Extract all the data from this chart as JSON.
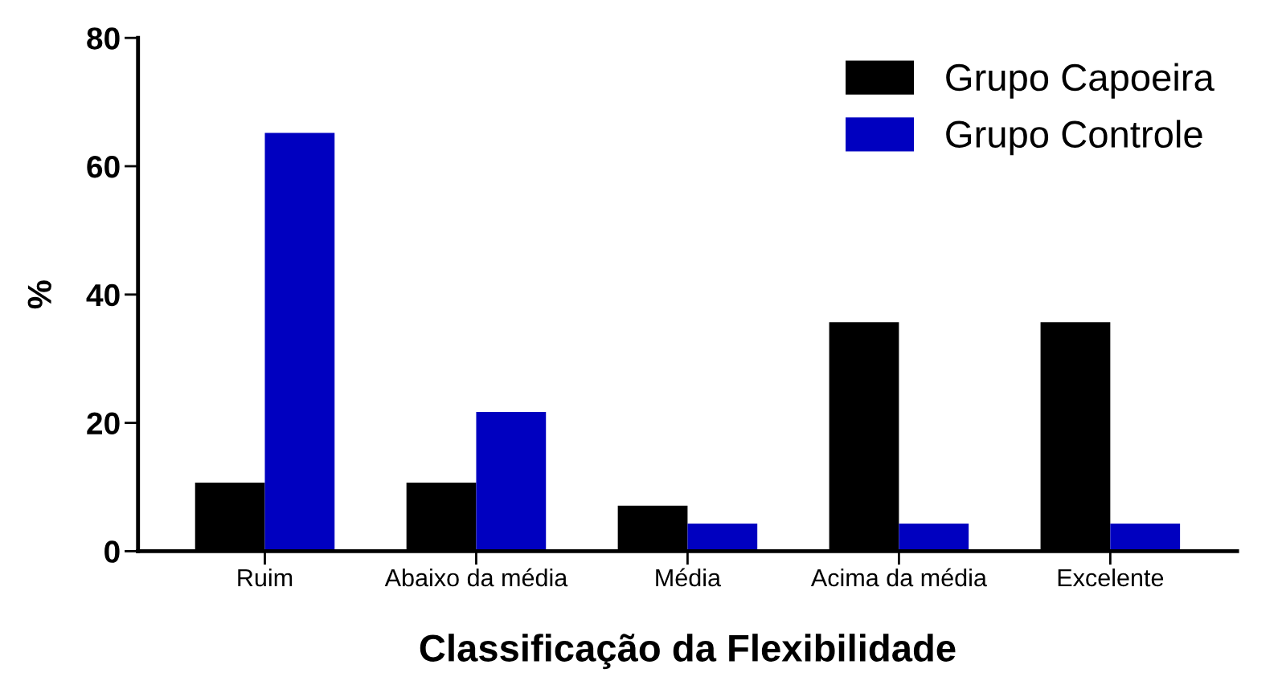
{
  "chart_data": {
    "type": "bar",
    "xlabel": "Classificação da Flexibilidade",
    "ylabel": "%",
    "categories": [
      "Ruim",
      "Abaixo da média",
      "Média",
      "Acima da média",
      "Excelente"
    ],
    "series": [
      {
        "name": "Grupo Capoeira",
        "color": "#000000",
        "values": [
          10.7,
          10.7,
          7.1,
          35.7,
          35.7
        ]
      },
      {
        "name": "Grupo Controle",
        "color": "#0000c0",
        "values": [
          65.2,
          21.7,
          4.3,
          4.3,
          4.3
        ]
      }
    ],
    "ylim": [
      0,
      80
    ],
    "yticks": [
      0,
      20,
      40,
      60,
      80
    ],
    "grid": false,
    "legend": "top right"
  }
}
